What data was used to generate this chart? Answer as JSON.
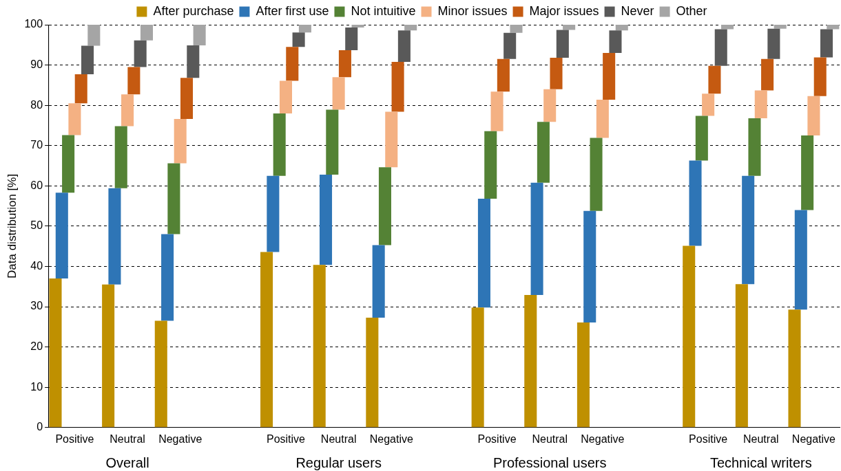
{
  "chart_data": {
    "type": "bar",
    "stacked": true,
    "ylabel": "Data distribution [%]",
    "ylim": [
      0,
      100
    ],
    "yticks": [
      0,
      10,
      20,
      30,
      40,
      50,
      60,
      70,
      80,
      90,
      100
    ],
    "grid": "y",
    "legend": "top",
    "categories": [
      "Positive",
      "Neutral",
      "Negative",
      null,
      "Positive",
      "Neutral",
      "Negative",
      null,
      "Positive",
      "Neutral",
      "Negative",
      null,
      "Positive",
      "Neutral",
      "Negative"
    ],
    "annotations": [
      "Overall",
      "Regular users",
      "Professional users",
      "Technical writers"
    ],
    "series": [
      {
        "name": "After purchase",
        "color": "#bf9000",
        "values": [
          37,
          35.5,
          26.5,
          null,
          43.6,
          40.4,
          27.3,
          null,
          29.8,
          32.9,
          26.1,
          null,
          45.1,
          35.6,
          29.3
        ]
      },
      {
        "name": "After first use",
        "color": "#2e75b6",
        "values": [
          21.3,
          23.9,
          21.5,
          null,
          18.9,
          22.4,
          18,
          null,
          27,
          27.9,
          27.7,
          null,
          21.2,
          26.9,
          24.7
        ]
      },
      {
        "name": "Not intuitive",
        "color": "#548235",
        "values": [
          14.3,
          15.4,
          17.6,
          null,
          15.5,
          16.1,
          19.3,
          null,
          16.8,
          15.1,
          18.1,
          null,
          11.1,
          14.3,
          18.5
        ]
      },
      {
        "name": "Minor issues",
        "color": "#f4b183",
        "values": [
          7.9,
          7.9,
          11,
          null,
          8.1,
          8.1,
          13.8,
          null,
          9.8,
          8.1,
          9.5,
          null,
          5.5,
          6.9,
          9.8
        ]
      },
      {
        "name": "Major issues",
        "color": "#c55a11",
        "values": [
          7.2,
          6.8,
          10.2,
          null,
          8.4,
          6.7,
          12.4,
          null,
          8.1,
          7.8,
          11.6,
          null,
          6.9,
          7.8,
          9.6
        ]
      },
      {
        "name": "Never",
        "color": "#595959",
        "values": [
          7.1,
          6.6,
          8.1,
          null,
          3.6,
          5.6,
          7.8,
          null,
          6.5,
          6.9,
          5.6,
          null,
          9.1,
          7.5,
          7
        ]
      },
      {
        "name": "Other",
        "color": "#a5a5a5",
        "values": [
          5.2,
          3.9,
          5.1,
          null,
          1.9,
          0.7,
          1.4,
          null,
          2,
          1.3,
          1.4,
          null,
          1.1,
          1,
          1.1
        ]
      }
    ]
  }
}
